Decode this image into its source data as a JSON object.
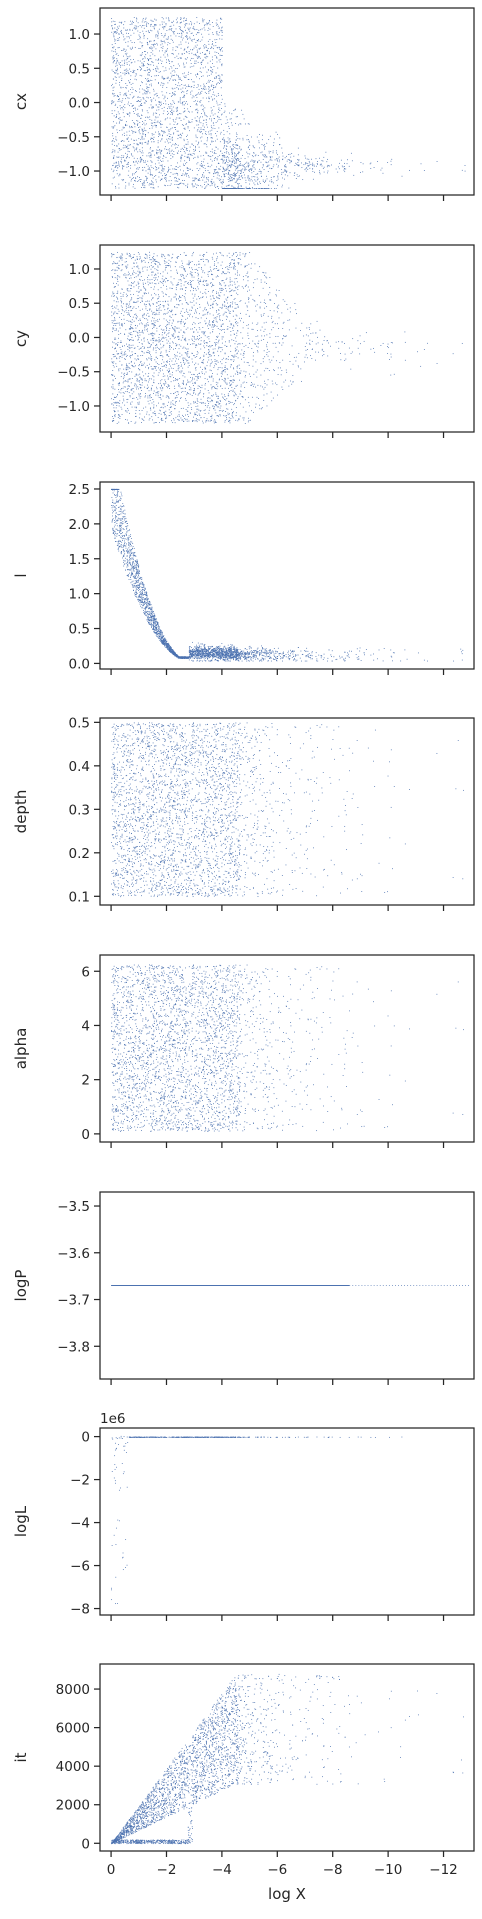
{
  "chart_data": {
    "type": "scatter",
    "x_label": "log X",
    "x_axis": {
      "lim": [
        0.4,
        -13.1
      ],
      "inverted": true,
      "ticks": [
        0,
        -2,
        -4,
        -6,
        -8,
        -10,
        -12
      ],
      "tick_labels": [
        "0",
        "−2",
        "−4",
        "−6",
        "−8",
        "−10",
        "−12"
      ]
    },
    "marker_color": "#4c72b0",
    "grid": false,
    "panels": [
      {
        "ylabel": "cx",
        "ylim": [
          -1.35,
          1.38
        ],
        "yticks": [
          -1.0,
          -0.5,
          0.0,
          0.5,
          1.0
        ],
        "ytick_labels": [
          "−1.0",
          "−0.5",
          "0.0",
          "0.5",
          "1.0"
        ],
        "description": "uniform in [-1.25, 1.25] for logX in [0, -4]; band narrowing toward -1.1 at logX about -4.5; sparse tail to -13"
      },
      {
        "ylabel": "cy",
        "ylim": [
          -1.38,
          1.35
        ],
        "yticks": [
          -1.0,
          -0.5,
          0.0,
          0.5,
          1.0
        ],
        "ytick_labels": [
          "−1.0",
          "−0.5",
          "0.0",
          "0.5",
          "1.0"
        ],
        "description": "uniform in [-1.25, 1.25] for logX in [0, -5]; converging toward about -0.2 with sparse tail"
      },
      {
        "ylabel": "l",
        "ylim": [
          -0.08,
          2.6
        ],
        "yticks": [
          0.0,
          0.5,
          1.0,
          1.5,
          2.0,
          2.5
        ],
        "ytick_labels": [
          "0.0",
          "0.5",
          "1.0",
          "1.5",
          "2.0",
          "2.5"
        ],
        "description": "falls from 2.5 at logX 0 to about 0.05 at logX about -2.8, then about 0.15 to -13"
      },
      {
        "ylabel": "depth",
        "ylim": [
          0.08,
          0.51
        ],
        "yticks": [
          0.1,
          0.2,
          0.3,
          0.4,
          0.5
        ],
        "ytick_labels": [
          "0.1",
          "0.2",
          "0.3",
          "0.4",
          "0.5"
        ],
        "description": "uniform in [0.1, 0.5] with density thinning beyond logX -6"
      },
      {
        "ylabel": "alpha",
        "ylim": [
          -0.3,
          6.6
        ],
        "yticks": [
          0,
          2,
          4,
          6
        ],
        "ytick_labels": [
          "0",
          "2",
          "4",
          "6"
        ],
        "description": "uniform in [0, 6.28] with density thinning beyond logX -6"
      },
      {
        "ylabel": "logP",
        "ylim": [
          -3.87,
          -3.47
        ],
        "yticks": [
          -3.8,
          -3.7,
          -3.6,
          -3.5
        ],
        "ytick_labels": [
          "−3.8",
          "−3.7",
          "−3.6",
          "−3.5"
        ],
        "constant_value": -3.67
      },
      {
        "ylabel": "logL",
        "offset_text": "1e6",
        "ylim": [
          -8.3,
          0.4
        ],
        "yticks": [
          -8,
          -6,
          -4,
          -2,
          0
        ],
        "ytick_labels": [
          "−8",
          "−6",
          "−4",
          "−2",
          "0"
        ],
        "description": "rises steeply from about -8 at logX 0 to about 0 by logX -0.5, flat near 0 to -13"
      },
      {
        "ylabel": "it",
        "ylim": [
          -400,
          9300
        ],
        "yticks": [
          0,
          2000,
          4000,
          6000,
          8000
        ],
        "ytick_labels": [
          "0",
          "2000",
          "4000",
          "6000",
          "8000"
        ],
        "description": "iteration count increases roughly linearly with -logX up to 8800 at logX about -4.5; gap near logX -2.8"
      }
    ]
  }
}
